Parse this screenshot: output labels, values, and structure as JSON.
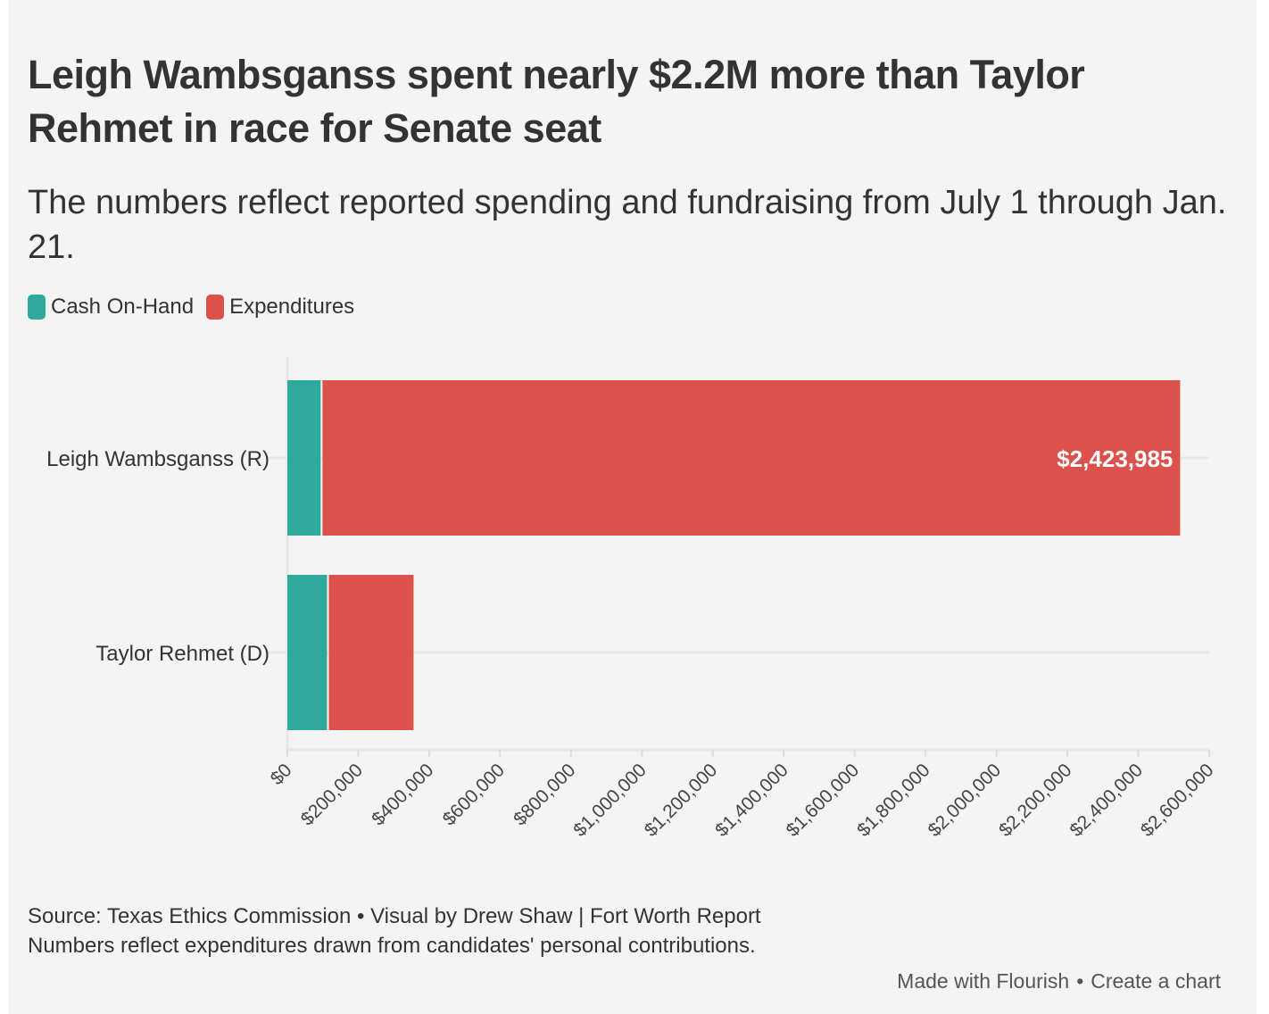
{
  "chart_data": {
    "type": "bar",
    "orientation": "horizontal",
    "stacked": true,
    "title": "Leigh Wambsganss spent nearly $2.2M more than Taylor Rehmet in race for Senate seat",
    "subtitle": "The numbers reflect reported spending and fundraising from July 1 through Jan. 21.",
    "categories": [
      "Leigh Wambsganss (R)",
      "Taylor Rehmet (D)"
    ],
    "series": [
      {
        "name": "Cash On-Hand",
        "color": "#2ea99c",
        "values": [
          94000,
          112000
        ]
      },
      {
        "name": "Expenditures",
        "color": "#dc514b",
        "values": [
          2423985,
          244000
        ]
      }
    ],
    "data_labels": [
      {
        "category": "Leigh Wambsganss (R)",
        "series": "Expenditures",
        "text": "$2,423,985"
      }
    ],
    "xlim": [
      0,
      2600000
    ],
    "x_ticks": [
      "$0",
      "$200,000",
      "$400,000",
      "$600,000",
      "$800,000",
      "$1,000,000",
      "$1,200,000",
      "$1,400,000",
      "$1,600,000",
      "$1,800,000",
      "$2,000,000",
      "$2,200,000",
      "$2,400,000",
      "$2,600,000"
    ],
    "x_tick_values": [
      0,
      200000,
      400000,
      600000,
      800000,
      1000000,
      1200000,
      1400000,
      1600000,
      1800000,
      2000000,
      2200000,
      2400000,
      2600000
    ],
    "legend_position": "top-left",
    "grid": true
  },
  "footer": {
    "source": "Source: Texas Ethics Commission • Visual by Drew Shaw | Fort Worth Report",
    "note": "Numbers reflect expenditures drawn from candidates' personal contributions.",
    "made_with": "Made with Flourish",
    "separator": "•",
    "create": "Create a chart"
  }
}
